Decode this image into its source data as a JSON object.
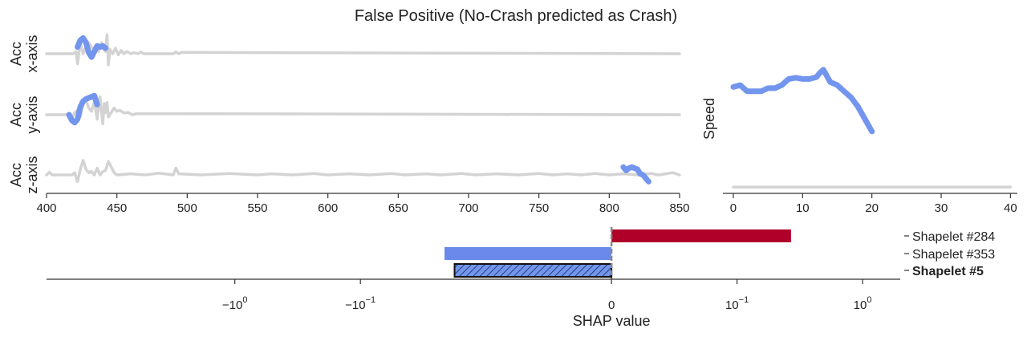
{
  "title": "False Positive (No-Crash predicted as Crash)",
  "colors": {
    "signal": "#d3d3d3",
    "shapelet": "#7295ee",
    "positive": "#b0002a",
    "negative": "#6a89ea",
    "axis": "#333333"
  },
  "chart_data": [
    {
      "type": "line",
      "name": "acc-x",
      "ylabel": [
        "Acc",
        "x-axis"
      ],
      "xlim": [
        400,
        850
      ],
      "ylim": [
        -1,
        1
      ],
      "series": [
        {
          "name": "signal",
          "x": [
            400,
            419,
            421,
            422,
            423,
            424,
            426,
            428,
            429,
            431,
            433,
            435,
            437,
            439,
            440,
            442,
            443,
            444,
            445,
            447,
            449,
            451,
            453,
            455,
            457,
            460,
            462,
            465,
            467,
            469,
            472,
            490,
            492,
            494,
            496,
            850
          ],
          "y": [
            0,
            0,
            0.1,
            -0.45,
            0,
            0.5,
            0,
            0.3,
            0.55,
            0.4,
            0.2,
            0.3,
            0.1,
            0.5,
            0.25,
            0.1,
            0.85,
            -0.5,
            0.2,
            0,
            0.25,
            -0.05,
            0.15,
            0,
            0.1,
            0,
            0.05,
            0,
            0.08,
            0,
            0,
            0,
            0.08,
            0,
            0.06,
            0
          ]
        },
        {
          "name": "shapelet",
          "x": [
            422,
            424,
            426,
            428,
            430,
            432,
            434,
            436,
            438,
            440,
            442
          ],
          "y": [
            0.3,
            0.6,
            0.7,
            0.5,
            0.05,
            -0.15,
            0.1,
            0.35,
            0.3,
            0.35,
            0.25
          ]
        }
      ]
    },
    {
      "type": "line",
      "name": "acc-y",
      "ylabel": [
        "Acc",
        "y-axis"
      ],
      "xlim": [
        400,
        850
      ],
      "ylim": [
        -1,
        1
      ],
      "series": [
        {
          "name": "signal",
          "x": [
            400,
            414,
            416,
            418,
            420,
            422,
            424,
            426,
            428,
            430,
            432,
            434,
            436,
            438,
            440,
            441,
            442,
            443,
            444,
            446,
            448,
            450,
            452,
            455,
            458,
            461,
            464,
            850
          ],
          "y": [
            0,
            0,
            0.05,
            -0.2,
            0.1,
            0.2,
            -0.1,
            0.5,
            0.65,
            0.3,
            0.15,
            0.6,
            -0.2,
            0.8,
            -0.4,
            0.5,
            0.1,
            0.55,
            -0.1,
            0.1,
            0.3,
            0.15,
            0.2,
            0.08,
            0.1,
            0,
            0.05,
            0
          ]
        },
        {
          "name": "shapelet",
          "x": [
            416,
            418,
            420,
            422,
            424,
            426,
            428,
            430,
            432,
            434,
            436
          ],
          "y": [
            0,
            -0.25,
            -0.35,
            -0.2,
            0.35,
            0.6,
            0.7,
            0.75,
            0.8,
            0.85,
            0.45
          ]
        }
      ]
    },
    {
      "type": "line",
      "name": "acc-z",
      "ylabel": [
        "Acc",
        "z-axis"
      ],
      "xlim": [
        400,
        850
      ],
      "ylim": [
        -1,
        1
      ],
      "series": [
        {
          "name": "signal",
          "x": [
            400,
            402,
            404,
            418,
            420,
            422,
            424,
            426,
            428,
            430,
            432,
            434,
            436,
            438,
            440,
            442,
            444,
            446,
            448,
            450,
            460,
            470,
            480,
            490,
            492,
            494,
            510,
            530,
            550,
            560,
            575,
            590,
            600,
            615,
            630,
            645,
            655,
            670,
            680,
            695,
            705,
            720,
            735,
            750,
            760,
            770,
            780,
            790,
            800,
            810,
            820,
            830,
            835,
            840,
            845,
            850
          ],
          "y": [
            0,
            0.12,
            0,
            0,
            0.1,
            -0.3,
            0.25,
            0.65,
            0.25,
            0.1,
            0.15,
            0,
            0.3,
            0,
            0.15,
            0.2,
            0.6,
            0.35,
            0.1,
            0,
            0.05,
            0,
            0.08,
            0,
            0.3,
            0.05,
            0,
            0.06,
            0,
            0.05,
            0,
            0.06,
            0,
            0.05,
            0,
            0.06,
            0,
            0.05,
            0,
            0.06,
            0,
            0.05,
            0,
            0.06,
            0,
            0.05,
            0,
            0.06,
            0,
            0.05,
            0,
            0.06,
            0,
            0.05,
            0.1,
            0
          ]
        },
        {
          "name": "shapelet",
          "x": [
            810,
            812,
            814,
            816,
            818,
            820,
            822,
            824,
            826,
            828
          ],
          "y": [
            0.35,
            0.2,
            0.3,
            0.35,
            0.3,
            0.25,
            0.05,
            0,
            -0.15,
            -0.3
          ]
        }
      ]
    },
    {
      "type": "line",
      "name": "speed",
      "ylabel": [
        "Speed"
      ],
      "xlim": [
        -1.5,
        41
      ],
      "ylim": [
        -1,
        1
      ],
      "ticks": [
        0,
        10,
        20,
        30,
        40
      ],
      "series": [
        {
          "name": "signal",
          "x": [
            0,
            40
          ],
          "y": [
            -0.95,
            -0.95
          ]
        },
        {
          "name": "shapelet",
          "x": [
            0,
            1,
            2,
            3,
            4,
            5,
            6,
            7,
            8,
            9,
            10,
            11,
            12,
            12.5,
            13,
            14,
            15,
            16,
            17,
            18,
            19,
            20
          ],
          "y": [
            0.67,
            0.7,
            0.6,
            0.6,
            0.6,
            0.65,
            0.65,
            0.7,
            0.8,
            0.82,
            0.8,
            0.8,
            0.83,
            0.9,
            0.95,
            0.75,
            0.7,
            0.6,
            0.5,
            0.35,
            0.15,
            -0.05
          ]
        }
      ]
    },
    {
      "type": "bar",
      "orientation": "horizontal",
      "xscale": "symlog",
      "xlabel": "SHAP value",
      "xlim": [
        -4.5,
        2.3
      ],
      "ticks": [
        {
          "value": -3,
          "base": "−10",
          "exp": "0"
        },
        {
          "value": -2,
          "base": "−10",
          "exp": "−1"
        },
        {
          "value": 0,
          "base": "0",
          "exp": ""
        },
        {
          "value": 1,
          "base": "10",
          "exp": "−1"
        },
        {
          "value": 2,
          "base": "10",
          "exp": "0"
        }
      ],
      "categories": [
        "Shapelet #284",
        "Shapelet #353",
        "Shapelet #5"
      ],
      "values": [
        1.43,
        -1.33,
        -1.25
      ],
      "highlight": "Shapelet #5"
    }
  ],
  "x_ticks_main": [
    400,
    450,
    500,
    550,
    600,
    650,
    700,
    750,
    800,
    850
  ],
  "tick_labels_main": [
    "400",
    "450",
    "500",
    "550",
    "600",
    "650",
    "700",
    "750",
    "800",
    "850"
  ],
  "tick_labels_speed": [
    "0",
    "10",
    "20",
    "30",
    "40"
  ]
}
